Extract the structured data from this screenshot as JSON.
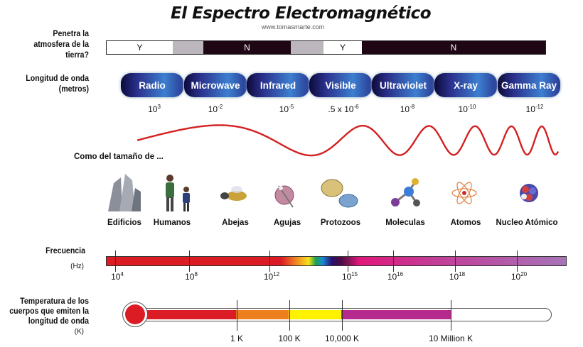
{
  "title": "El Espectro Electromagnético",
  "url": "www.tomasmarte.com",
  "atmosphere": {
    "label": "Penetra la atmosfera de la tierra?",
    "segments": [
      {
        "text": "Y",
        "color": "#ffffff"
      },
      {
        "text": "",
        "color": "#bcb6bd"
      },
      {
        "text": "N",
        "color": "#1e0614"
      },
      {
        "text": "",
        "color": "#bcb6bd"
      },
      {
        "text": "Y",
        "color": "#ffffff"
      },
      {
        "text": "N",
        "color": "#1e0614"
      }
    ]
  },
  "wavelength": {
    "label": "Longitud de onda (metros)",
    "bands": [
      "Radio",
      "Microwave",
      "Infrared",
      "Visible",
      "Ultraviolet",
      "X-ray",
      "Gamma Ray"
    ],
    "values": [
      {
        "base": "10",
        "exp": "3"
      },
      {
        "base": "10",
        "exp": "-2"
      },
      {
        "base": "10",
        "exp": "-5"
      },
      {
        "base": ".5 x 10",
        "exp": "-6"
      },
      {
        "base": "10",
        "exp": "-8"
      },
      {
        "base": "10",
        "exp": "-10"
      },
      {
        "base": "10",
        "exp": "-12"
      }
    ]
  },
  "size": {
    "label": "Como del tamaño de ...",
    "objects": [
      "Edificios",
      "Humanos",
      "Abejas",
      "Agujas",
      "Protozoos",
      "Moleculas",
      "Atomos",
      "Nucleo Atómico"
    ]
  },
  "frequency": {
    "label": "Frecuencia",
    "unit": "(Hz)",
    "ticks": [
      {
        "base": "10",
        "exp": "4"
      },
      {
        "base": "10",
        "exp": "8"
      },
      {
        "base": "10",
        "exp": "12"
      },
      {
        "base": "10",
        "exp": "15"
      },
      {
        "base": "10",
        "exp": "16"
      },
      {
        "base": "10",
        "exp": "18"
      },
      {
        "base": "10",
        "exp": "20"
      }
    ]
  },
  "temperature": {
    "label": "Temperatura de los cuerpos que emiten la longitud de onda",
    "unit": "(K)",
    "ticks": [
      "1 K",
      "100 K",
      "10,000 K",
      "10 Million K"
    ]
  },
  "colors": {
    "wave": "#d42020",
    "red": "#dc1c24",
    "orange": "#ee7f1f",
    "yellow": "#fff200",
    "magenta": "#b52a8c"
  }
}
